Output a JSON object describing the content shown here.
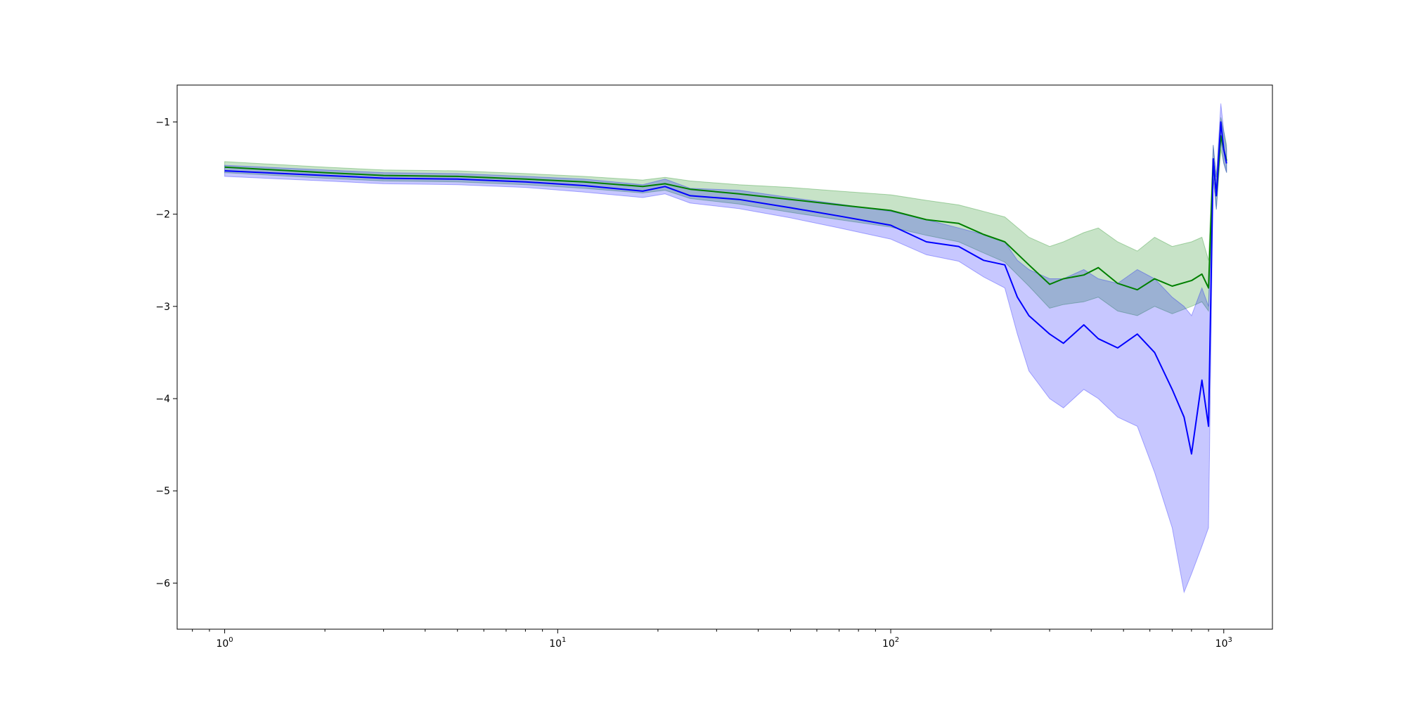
{
  "chart_data": {
    "type": "line",
    "title": "",
    "xlabel": "",
    "ylabel": "",
    "xscale": "log",
    "xlim": [
      0.72,
      1400
    ],
    "ylim": [
      -6.5,
      -0.6
    ],
    "grid": false,
    "legend": "none",
    "x_ticks": [
      {
        "value": 1,
        "base": "10",
        "exp": "0"
      },
      {
        "value": 10,
        "base": "10",
        "exp": "1"
      },
      {
        "value": 100,
        "base": "10",
        "exp": "2"
      },
      {
        "value": 1000,
        "base": "10",
        "exp": "3"
      }
    ],
    "y_ticks": [
      {
        "value": -1,
        "label": "−1"
      },
      {
        "value": -2,
        "label": "−2"
      },
      {
        "value": -3,
        "label": "−3"
      },
      {
        "value": -4,
        "label": "−4"
      },
      {
        "value": -5,
        "label": "−5"
      },
      {
        "value": -6,
        "label": "−6"
      }
    ],
    "series": [
      {
        "color": "#008000",
        "x": [
          1,
          2,
          3,
          5,
          8,
          12,
          18,
          21,
          25,
          35,
          50,
          70,
          100,
          128,
          160,
          190,
          220,
          260,
          300,
          330,
          380,
          420,
          480,
          550,
          620,
          700,
          800,
          860,
          900,
          930,
          950,
          980,
          1000,
          1020
        ],
        "y": [
          -1.49,
          -1.55,
          -1.58,
          -1.59,
          -1.62,
          -1.65,
          -1.7,
          -1.67,
          -1.73,
          -1.78,
          -1.84,
          -1.9,
          -1.96,
          -2.06,
          -2.1,
          -2.22,
          -2.3,
          -2.55,
          -2.76,
          -2.7,
          -2.66,
          -2.58,
          -2.75,
          -2.82,
          -2.7,
          -2.78,
          -2.72,
          -2.65,
          -2.8,
          -1.4,
          -1.8,
          -1.15,
          -1.3,
          -1.42
        ],
        "lower": [
          -1.55,
          -1.61,
          -1.64,
          -1.65,
          -1.68,
          -1.72,
          -1.77,
          -1.74,
          -1.83,
          -1.89,
          -1.98,
          -2.06,
          -2.14,
          -2.23,
          -2.3,
          -2.42,
          -2.52,
          -2.78,
          -3.02,
          -2.98,
          -2.95,
          -2.9,
          -3.05,
          -3.1,
          -3.0,
          -3.08,
          -3.0,
          -2.95,
          -3.05,
          -1.6,
          -1.95,
          -1.3,
          -1.45,
          -1.55
        ],
        "upper": [
          -1.43,
          -1.49,
          -1.52,
          -1.53,
          -1.56,
          -1.59,
          -1.63,
          -1.6,
          -1.64,
          -1.68,
          -1.71,
          -1.75,
          -1.79,
          -1.85,
          -1.9,
          -1.97,
          -2.03,
          -2.25,
          -2.35,
          -2.3,
          -2.2,
          -2.15,
          -2.3,
          -2.4,
          -2.25,
          -2.35,
          -2.3,
          -2.25,
          -2.5,
          -1.25,
          -1.6,
          -0.95,
          -1.1,
          -1.25
        ]
      },
      {
        "color": "#0000ff",
        "x": [
          1,
          2,
          3,
          5,
          8,
          12,
          18,
          21,
          25,
          35,
          50,
          70,
          100,
          128,
          160,
          190,
          220,
          240,
          260,
          300,
          330,
          380,
          420,
          480,
          550,
          620,
          700,
          760,
          800,
          860,
          900,
          930,
          950,
          980,
          1000,
          1020
        ],
        "y": [
          -1.53,
          -1.58,
          -1.61,
          -1.62,
          -1.65,
          -1.69,
          -1.75,
          -1.7,
          -1.8,
          -1.84,
          -1.93,
          -2.02,
          -2.12,
          -2.3,
          -2.35,
          -2.5,
          -2.55,
          -2.9,
          -3.1,
          -3.3,
          -3.4,
          -3.2,
          -3.35,
          -3.45,
          -3.3,
          -3.5,
          -3.9,
          -4.2,
          -4.6,
          -3.8,
          -4.3,
          -1.4,
          -1.8,
          -1.0,
          -1.3,
          -1.45
        ],
        "lower": [
          -1.59,
          -1.64,
          -1.67,
          -1.68,
          -1.71,
          -1.76,
          -1.82,
          -1.78,
          -1.88,
          -1.94,
          -2.04,
          -2.15,
          -2.27,
          -2.44,
          -2.51,
          -2.68,
          -2.8,
          -3.3,
          -3.7,
          -4.0,
          -4.1,
          -3.9,
          -4.0,
          -4.2,
          -4.3,
          -4.8,
          -5.4,
          -6.1,
          -5.9,
          -5.6,
          -5.4,
          -1.6,
          -1.95,
          -1.2,
          -1.45,
          -1.55
        ],
        "upper": [
          -1.47,
          -1.52,
          -1.55,
          -1.56,
          -1.59,
          -1.62,
          -1.68,
          -1.62,
          -1.72,
          -1.74,
          -1.82,
          -1.89,
          -1.97,
          -2.06,
          -2.15,
          -2.22,
          -2.3,
          -2.5,
          -2.6,
          -2.7,
          -2.7,
          -2.6,
          -2.7,
          -2.75,
          -2.6,
          -2.7,
          -2.9,
          -3.0,
          -3.1,
          -2.8,
          -3.0,
          -1.25,
          -1.6,
          -0.8,
          -1.1,
          -1.3
        ]
      }
    ]
  }
}
